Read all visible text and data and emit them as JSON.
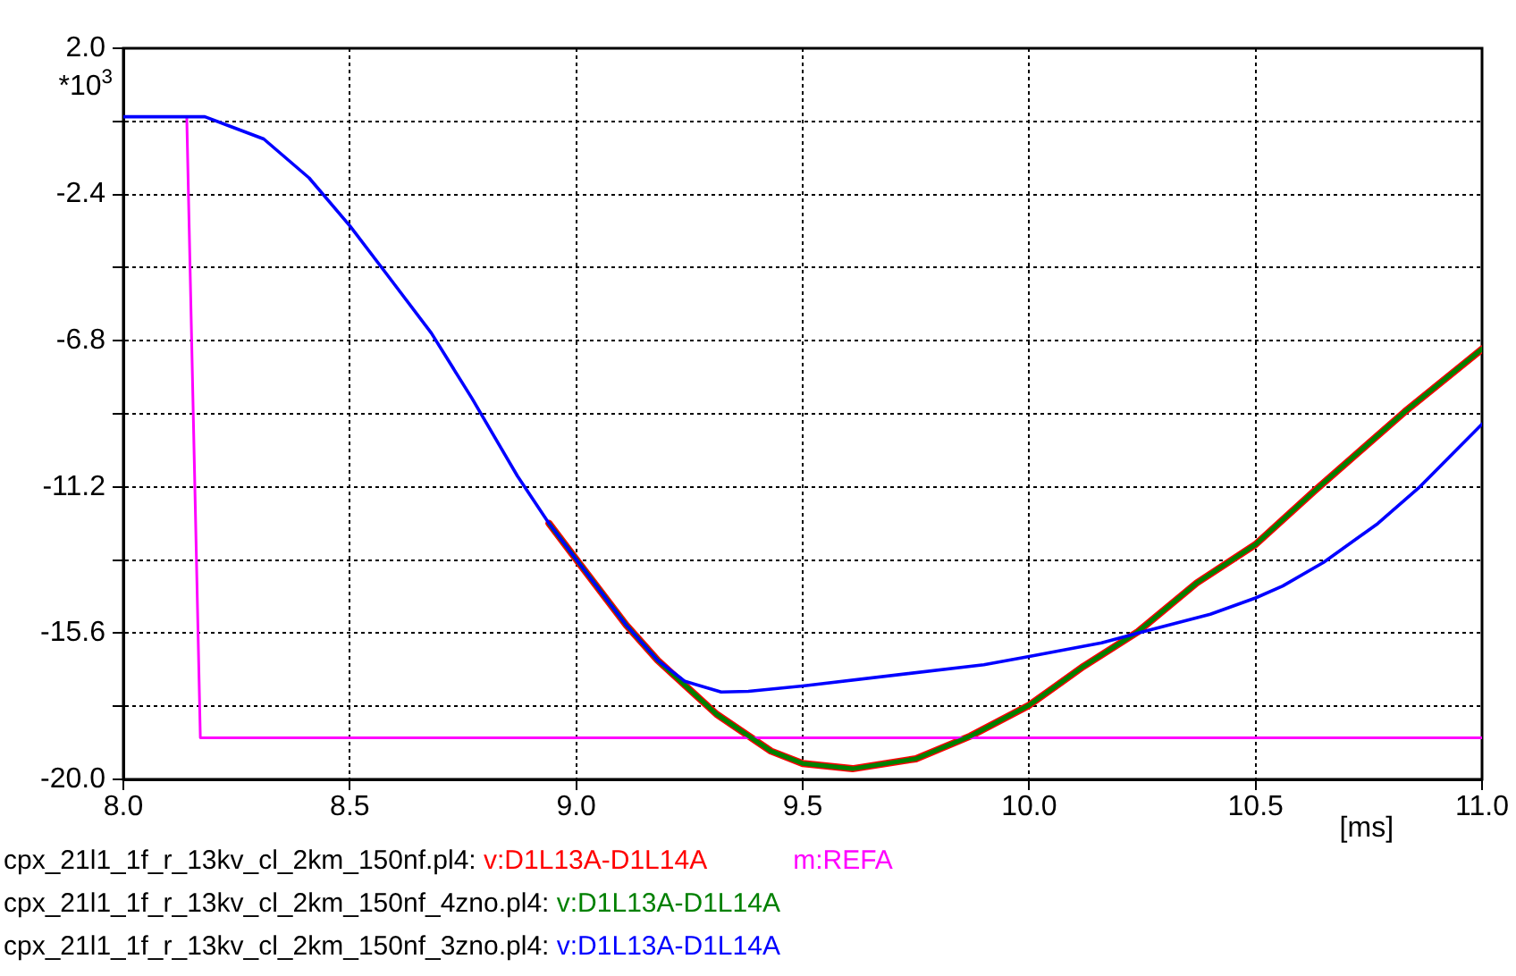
{
  "chart_data": {
    "type": "line",
    "xlabel": "[ms]",
    "ylabel": "*10$^{3}$",
    "xlim": [
      8.0,
      11.0
    ],
    "ylim": [
      -20.0,
      2.0
    ],
    "xticks": [
      {
        "value": 8,
        "label": "8.0"
      },
      {
        "value": 8.5,
        "label": "8.5"
      },
      {
        "value": 9,
        "label": "9.0"
      },
      {
        "value": 9.5,
        "label": "9.5"
      },
      {
        "value": 10,
        "label": "10.0"
      },
      {
        "value": 10.5,
        "label": "10.5"
      },
      {
        "value": 11,
        "label": "11.0"
      }
    ],
    "yticks": [
      {
        "value": -20,
        "label": "-20.0"
      },
      {
        "value": -17.8,
        "label": null
      },
      {
        "value": -15.6,
        "label": "-15.6"
      },
      {
        "value": -13.4,
        "label": null
      },
      {
        "value": -11.2,
        "label": "-11.2"
      },
      {
        "value": -9,
        "label": null
      },
      {
        "value": -6.8,
        "label": "-6.8"
      },
      {
        "value": -4.6,
        "label": null
      },
      {
        "value": -2.4,
        "label": "-2.4"
      },
      {
        "value": -0.2,
        "label": null
      },
      {
        "value": 2,
        "label": "2.0"
      }
    ],
    "annotations": [
      "cpx_21l1_1f_r_13kv_cl_2km_150nf.pl4:",
      "cpx_21l1_1f_r_13kv_cl_2km_150nf_4zno.pl4:",
      "cpx_21l1_1f_r_13kv_cl_2km_150nf_3zno.pl4:"
    ],
    "grid": true,
    "legend": "bottom",
    "marker": "none",
    "line_style": "solid",
    "series": [
      {
        "name": "v:D1L13A-D1L14A",
        "color": "#ff0000",
        "x": [
          8.94,
          9.0,
          9.11,
          9.18,
          9.31,
          9.43,
          9.5,
          9.61,
          9.75,
          9.87,
          10.0,
          10.12,
          10.24,
          10.37,
          10.5,
          10.63,
          10.83,
          11.0
        ],
        "values": [
          -12.3,
          -13.38,
          -15.35,
          -16.42,
          -18.04,
          -19.15,
          -19.52,
          -19.68,
          -19.38,
          -18.7,
          -17.77,
          -16.6,
          -15.56,
          -14.09,
          -12.93,
          -11.32,
          -8.93,
          -7.05
        ]
      },
      {
        "name": "m:REFA",
        "color": "#ff00ff",
        "x": [
          8.0,
          8.14,
          8.17,
          11.0
        ],
        "values": [
          -0.06,
          -0.06,
          -18.75,
          -18.75
        ]
      },
      {
        "name": "v:D1L13A-D1L14A",
        "color": "#008000",
        "x": [
          8.94,
          9.0,
          9.11,
          9.18,
          9.31,
          9.43,
          9.5,
          9.61,
          9.75,
          9.87,
          10.0,
          10.12,
          10.24,
          10.37,
          10.5,
          10.63,
          10.83,
          11.0
        ],
        "values": [
          -12.3,
          -13.38,
          -15.35,
          -16.42,
          -18.04,
          -19.15,
          -19.52,
          -19.68,
          -19.38,
          -18.7,
          -17.77,
          -16.6,
          -15.56,
          -14.09,
          -12.93,
          -11.32,
          -8.93,
          -7.05
        ]
      },
      {
        "name": "v:D1L13A-D1L14A",
        "color": "#0000ff",
        "x": [
          8.0,
          8.18,
          8.31,
          8.41,
          8.5,
          8.58,
          8.68,
          8.77,
          8.87,
          8.94,
          9.0,
          9.11,
          9.18,
          9.24,
          9.32,
          9.38,
          9.5,
          9.9,
          10.0,
          10.16,
          10.25,
          10.4,
          10.5,
          10.56,
          10.65,
          10.77,
          10.86,
          11.0
        ],
        "values": [
          -0.06,
          -0.06,
          -0.73,
          -1.9,
          -3.34,
          -4.77,
          -6.57,
          -8.54,
          -10.87,
          -12.3,
          -13.38,
          -15.35,
          -16.42,
          -17.05,
          -17.37,
          -17.35,
          -17.19,
          -16.55,
          -16.3,
          -15.89,
          -15.56,
          -15.03,
          -14.54,
          -14.18,
          -13.47,
          -12.3,
          -11.23,
          -9.31
        ]
      }
    ]
  }
}
